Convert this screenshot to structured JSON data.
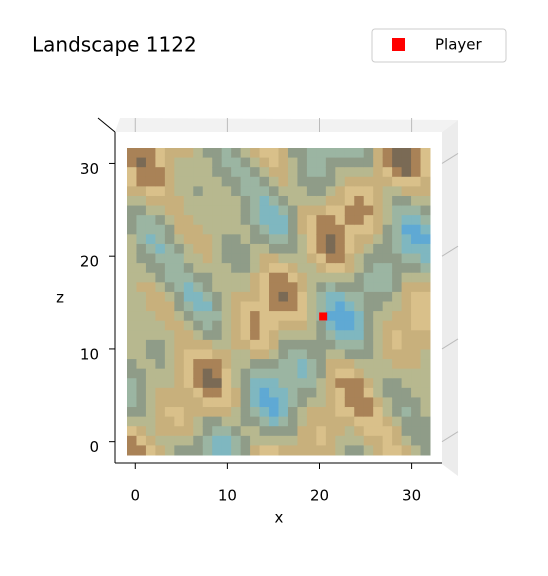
{
  "chart_data": {
    "type": "scatter",
    "title": "Landscape 1122",
    "xlabel": "x",
    "ylabel": "z",
    "series": [
      {
        "name": "Player",
        "color": "#ff0000",
        "x": [
          20.4
        ],
        "values": [
          13.5
        ]
      }
    ],
    "xlim": [
      -2.2,
      33.3
    ],
    "ylim": [
      -2.3,
      34.9
    ],
    "xticks": [
      0,
      10,
      20,
      30
    ],
    "yticks": [
      0,
      10,
      20,
      30
    ],
    "legend": "upper right"
  }
}
